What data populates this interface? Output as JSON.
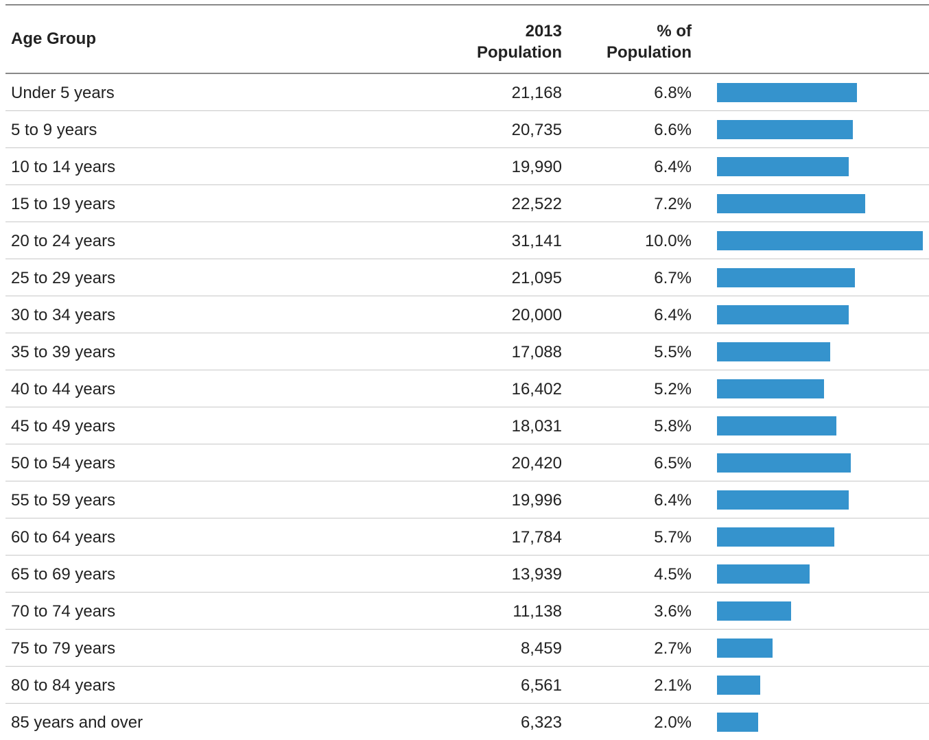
{
  "header": {
    "age_group": "Age Group",
    "population_line1": "2013",
    "population_line2": "Population",
    "percent_line1": "% of",
    "percent_line2": "Population"
  },
  "colors": {
    "bar": "#3593cd",
    "rule": "#888888",
    "row_divider": "#c8c8c8"
  },
  "chart_data": {
    "type": "table",
    "columns": [
      "Age Group",
      "2013 Population",
      "% of Population"
    ],
    "rows": [
      {
        "age": "Under 5 years",
        "population": "21,168",
        "percent": "6.8%",
        "value": 6.8
      },
      {
        "age": "5 to 9 years",
        "population": "20,735",
        "percent": "6.6%",
        "value": 6.6
      },
      {
        "age": "10 to 14 years",
        "population": "19,990",
        "percent": "6.4%",
        "value": 6.4
      },
      {
        "age": "15 to 19 years",
        "population": "22,522",
        "percent": "7.2%",
        "value": 7.2
      },
      {
        "age": "20 to 24 years",
        "population": "31,141",
        "percent": "10.0%",
        "value": 10.0
      },
      {
        "age": "25 to 29 years",
        "population": "21,095",
        "percent": "6.7%",
        "value": 6.7
      },
      {
        "age": "30 to 34 years",
        "population": "20,000",
        "percent": "6.4%",
        "value": 6.4
      },
      {
        "age": "35 to 39 years",
        "population": "17,088",
        "percent": "5.5%",
        "value": 5.5
      },
      {
        "age": "40 to 44 years",
        "population": "16,402",
        "percent": "5.2%",
        "value": 5.2
      },
      {
        "age": "45 to 49 years",
        "population": "18,031",
        "percent": "5.8%",
        "value": 5.8
      },
      {
        "age": "50 to 54 years",
        "population": "20,420",
        "percent": "6.5%",
        "value": 6.5
      },
      {
        "age": "55 to 59 years",
        "population": "19,996",
        "percent": "6.4%",
        "value": 6.4
      },
      {
        "age": "60 to 64 years",
        "population": "17,784",
        "percent": "5.7%",
        "value": 5.7
      },
      {
        "age": "65 to 69 years",
        "population": "13,939",
        "percent": "4.5%",
        "value": 4.5
      },
      {
        "age": "70 to 74 years",
        "population": "11,138",
        "percent": "3.6%",
        "value": 3.6
      },
      {
        "age": "75 to 79 years",
        "population": "8,459",
        "percent": "2.7%",
        "value": 2.7
      },
      {
        "age": "80 to 84 years",
        "population": "6,561",
        "percent": "2.1%",
        "value": 2.1
      },
      {
        "age": "85 years and over",
        "population": "6,323",
        "percent": "2.0%",
        "value": 2.0
      }
    ]
  }
}
